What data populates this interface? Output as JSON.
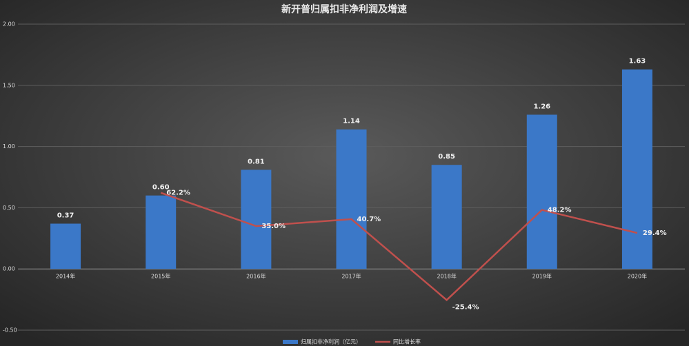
{
  "chart_data": {
    "type": "bar",
    "title": "新开普归属扣非净利润及增速",
    "categories": [
      "2014年",
      "2015年",
      "2016年",
      "2017年",
      "2018年",
      "2019年",
      "2020年"
    ],
    "series": [
      {
        "name": "归属扣非净利润（亿元）",
        "type": "bar",
        "color": "#3b78c8",
        "values": [
          0.37,
          0.6,
          0.81,
          1.14,
          0.85,
          1.26,
          1.63
        ],
        "value_labels": [
          "0.37",
          "0.60",
          "0.81",
          "1.14",
          "0.85",
          "1.26",
          "1.63"
        ]
      },
      {
        "name": "同比增长率",
        "type": "line",
        "color": "#c0504d",
        "values": [
          null,
          0.622,
          0.35,
          0.407,
          -0.254,
          0.482,
          0.294
        ],
        "value_labels": [
          null,
          "62.2%",
          "35.0%",
          "40.7%",
          "-25.4%",
          "48.2%",
          "29.4%"
        ]
      }
    ],
    "ylim": [
      -0.5,
      2.0
    ],
    "yticks": [
      {
        "value": -0.5,
        "label": "-0.50"
      },
      {
        "value": 0,
        "label": "0.00"
      },
      {
        "value": 0.5,
        "label": "0.50"
      },
      {
        "value": 1.0,
        "label": "1.00"
      },
      {
        "value": 1.5,
        "label": "1.50"
      },
      {
        "value": 2.0,
        "label": "2.00"
      }
    ],
    "grid": true,
    "legend": "bottom"
  }
}
